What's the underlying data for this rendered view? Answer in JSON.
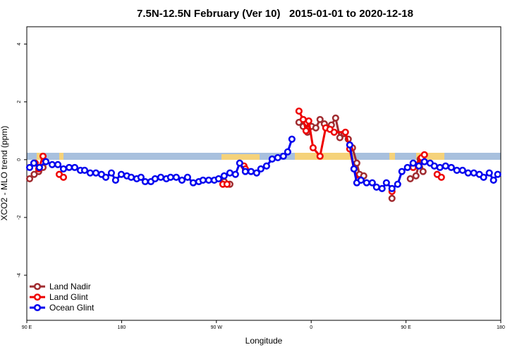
{
  "chart_data": {
    "type": "line",
    "title": "7.5N-12.5N February (Ver 10)   2015-01-01 to 2020-12-18",
    "xlabel": "Longitude",
    "ylabel": "XCO2 - MLO trend (ppm)",
    "xlim": [
      90,
      540
    ],
    "ylim": [
      -5.56,
      4.6
    ],
    "xticks": [
      {
        "value": 90,
        "label": "90 E"
      },
      180,
      {
        "value": 270,
        "label": "90 W"
      },
      {
        "value": 360,
        "label": "0"
      },
      {
        "value": 450,
        "label": "90 E"
      },
      {
        "value": 540,
        "label": "180"
      }
    ],
    "yticks": [
      -4,
      -2,
      0,
      2,
      4
    ],
    "legend": "bottom-left",
    "series": [
      {
        "name": "Land Nadir",
        "color": "#a02c30",
        "x": [
          92.7,
          97.0,
          101.3,
          105.4,
          null,
          277.4,
          282.8,
          null,
          348.4,
          352.4,
          356.4,
          360.4,
          364.4,
          368.4,
          372.5,
          376.5,
          379.2,
          383.2,
          387.2,
          391.2,
          395.2,
          399.2,
          403.3,
          405.9,
          409.9,
          null,
          436.7,
          null,
          454.1,
          459.5,
          463.5,
          466.2
        ],
        "values": [
          -0.66,
          -0.51,
          -0.41,
          -0.27,
          null,
          -0.76,
          -0.85,
          null,
          1.29,
          1.15,
          0.95,
          1.15,
          1.1,
          1.39,
          1.24,
          1.1,
          1.2,
          1.44,
          0.76,
          0.9,
          0.71,
          0.41,
          -0.12,
          -0.51,
          -0.56,
          null,
          -1.34,
          null,
          -0.66,
          -0.56,
          0.02,
          -0.41
        ]
      },
      {
        "name": "Land Glint",
        "color": "#ee0000",
        "x": [
          98.0,
          101.3,
          105.4,
          null,
          120.8,
          124.8,
          null,
          276.1,
          280.1,
          null,
          296.2,
          297.5,
          null,
          348.4,
          352.4,
          355.1,
          357.7,
          361.8,
          368.4,
          373.8,
          377.8,
          381.8,
          392.5,
          396.6,
          400.6,
          404.6,
          null,
          436.7,
          null,
          456.8,
          464.8,
          467.5,
          null,
          479.6,
          483.6
        ],
        "values": [
          -0.12,
          -0.32,
          0.12,
          null,
          -0.51,
          -0.61,
          null,
          -0.85,
          -0.85,
          null,
          -0.22,
          -0.32,
          null,
          1.68,
          1.39,
          1.0,
          1.34,
          0.41,
          0.12,
          1.1,
          1.05,
          0.95,
          0.95,
          0.37,
          -0.32,
          -0.71,
          null,
          -1.1,
          null,
          -0.27,
          0.07,
          0.17,
          null,
          -0.51,
          -0.61
        ]
      },
      {
        "name": "Ocean Glint",
        "color": "#0000ee",
        "x": [
          92.7,
          96.7,
          102.0,
          108.1,
          114.1,
          119.5,
          124.8,
          130.2,
          135.5,
          140.9,
          144.9,
          150.2,
          155.6,
          160.9,
          165.0,
          170.3,
          174.3,
          179.7,
          185.0,
          189.1,
          194.4,
          198.4,
          202.4,
          207.8,
          211.8,
          217.2,
          222.5,
          226.5,
          231.9,
          237.3,
          242.6,
          248.0,
          253.3,
          257.3,
          262.7,
          268.0,
          272.1,
          277.4,
          282.8,
          288.1,
          292.1,
          297.5,
          302.9,
          308.2,
          312.2,
          317.6,
          322.9,
          328.3,
          333.6,
          337.7,
          341.7,
          null,
          396.6,
          400.6,
          403.3,
          407.3,
          412.6,
          418.0,
          422.0,
          427.3,
          431.4,
          436.7,
          442.1,
          446.1,
          451.4,
          456.8,
          462.2,
          467.5,
          472.9,
          476.9,
          482.2,
          487.6,
          493.0,
          498.3,
          503.7,
          509.0,
          514.4,
          519.7,
          523.7,
          529.1,
          533.1,
          537.1
        ],
        "values": [
          -0.27,
          -0.12,
          -0.27,
          -0.07,
          -0.17,
          -0.17,
          -0.32,
          -0.27,
          -0.27,
          -0.37,
          -0.37,
          -0.46,
          -0.46,
          -0.51,
          -0.61,
          -0.46,
          -0.71,
          -0.51,
          -0.56,
          -0.61,
          -0.66,
          -0.61,
          -0.76,
          -0.76,
          -0.66,
          -0.61,
          -0.66,
          -0.61,
          -0.61,
          -0.71,
          -0.61,
          -0.8,
          -0.76,
          -0.71,
          -0.71,
          -0.71,
          -0.66,
          -0.56,
          -0.46,
          -0.51,
          -0.12,
          -0.41,
          -0.41,
          -0.46,
          -0.32,
          -0.22,
          0.02,
          0.07,
          0.12,
          0.27,
          0.71,
          null,
          0.51,
          -0.32,
          -0.8,
          -0.71,
          -0.8,
          -0.8,
          -0.95,
          -1.0,
          -0.8,
          -1.0,
          -0.85,
          -0.41,
          -0.27,
          -0.12,
          -0.22,
          -0.07,
          -0.12,
          -0.22,
          -0.27,
          -0.22,
          -0.27,
          -0.37,
          -0.37,
          -0.46,
          -0.46,
          -0.51,
          -0.61,
          -0.46,
          -0.71,
          -0.51
        ]
      }
    ]
  }
}
